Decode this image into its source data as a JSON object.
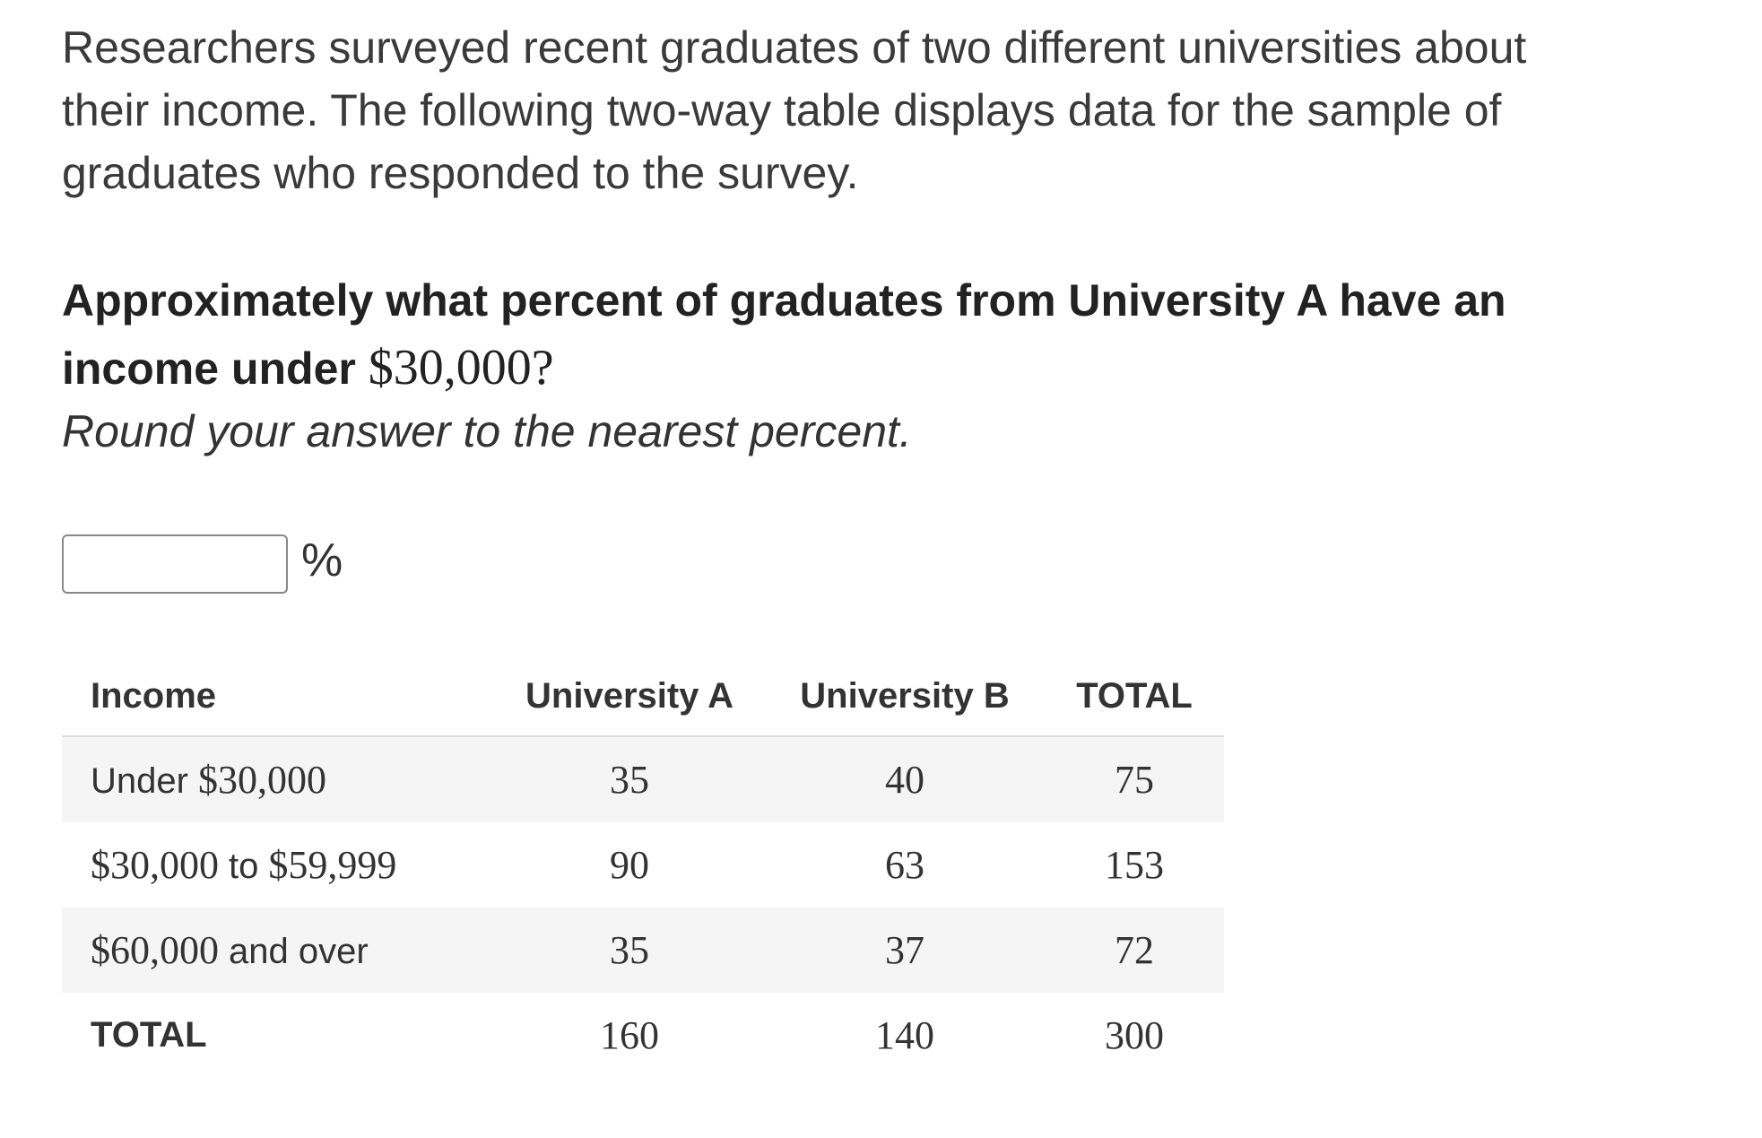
{
  "intro": {
    "lines": [
      "Researchers surveyed recent graduates of two different universities about",
      "their income. The following two-way table displays data for the sample of",
      "graduates who responded to the survey."
    ]
  },
  "question": {
    "lines": [
      "Approximately what percent of graduates from University A have an",
      "income under"
    ],
    "math": "$30,000?",
    "instruction": "Round your answer to the nearest percent."
  },
  "answer": {
    "unit": "%"
  },
  "table": {
    "header": [
      "Income",
      "University A",
      "University B",
      "TOTAL"
    ],
    "rows": [
      {
        "label": [
          {
            "text": "Under"
          },
          {
            "math": "$30,000"
          }
        ],
        "values": [
          35,
          40,
          75
        ]
      },
      {
        "label": [
          {
            "math": "$30,000"
          },
          {
            "text": "to"
          },
          {
            "math": "$59,999"
          }
        ],
        "values": [
          90,
          63,
          153
        ]
      },
      {
        "label": [
          {
            "math": "$60,000"
          },
          {
            "text": "and over"
          }
        ],
        "values": [
          35,
          37,
          72
        ]
      },
      {
        "label": [
          {
            "text": "TOTAL"
          }
        ],
        "values": [
          160,
          140,
          300
        ]
      }
    ]
  }
}
